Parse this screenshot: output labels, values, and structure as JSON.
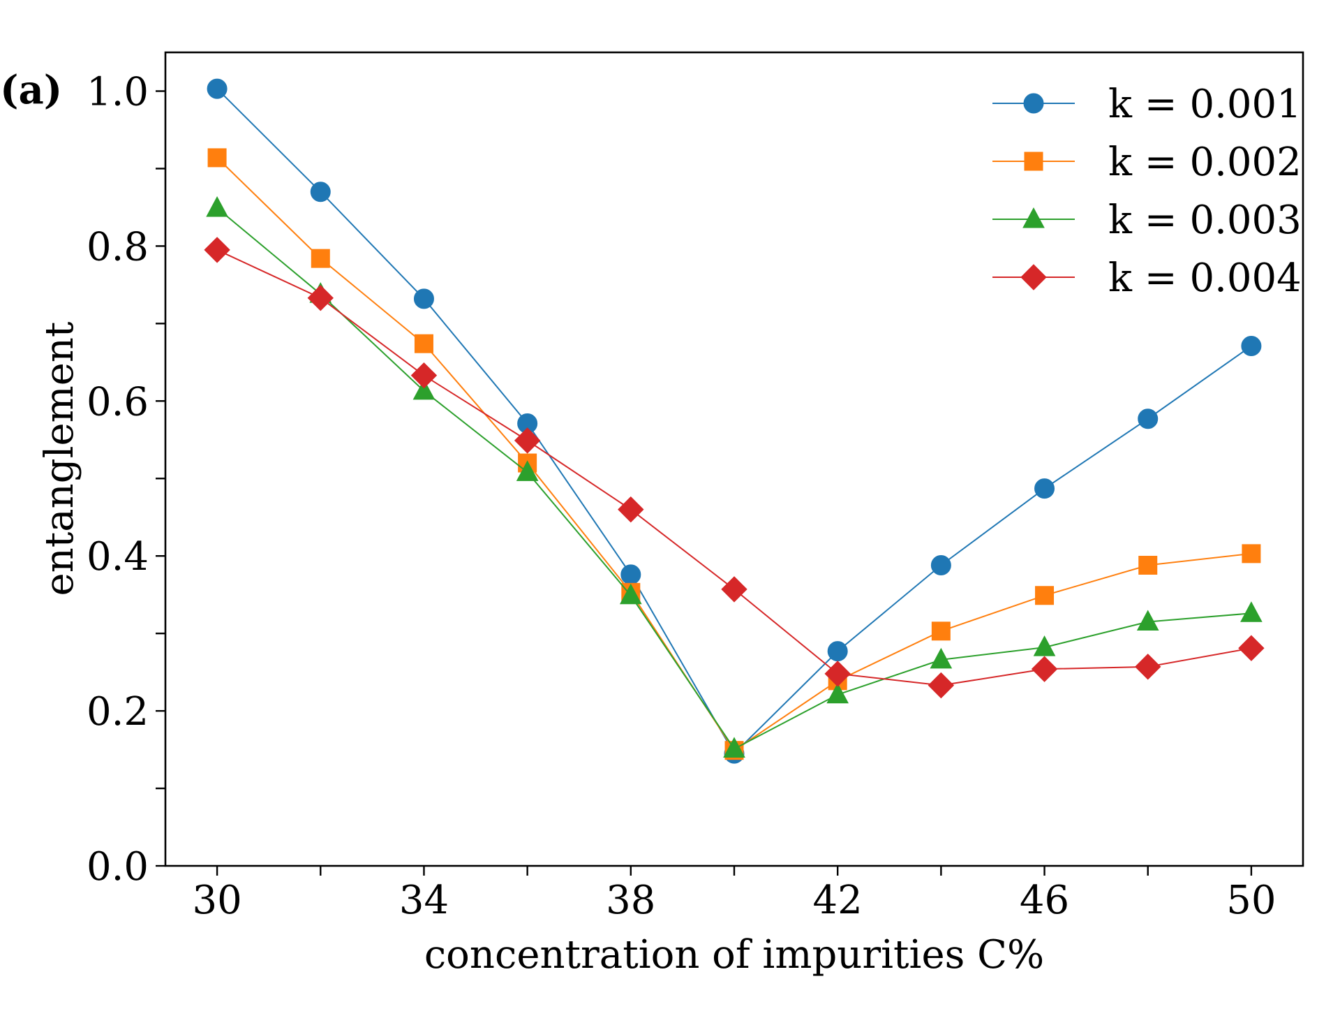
{
  "panel_label": "(a)",
  "chart_data": {
    "type": "line",
    "title": "",
    "xlabel": "concentration of impurities C%",
    "ylabel": "entanglement",
    "xlim": [
      29.0,
      51.0
    ],
    "ylim": [
      0.0,
      1.05
    ],
    "x": [
      30,
      32,
      34,
      36,
      38,
      40,
      42,
      44,
      46,
      48,
      50
    ],
    "xticks": [
      30,
      32,
      34,
      36,
      38,
      40,
      42,
      44,
      46,
      48,
      50
    ],
    "xtick_labels": [
      "30",
      "",
      "34",
      "",
      "38",
      "",
      "42",
      "",
      "46",
      "",
      "50"
    ],
    "yticks": [
      0.0,
      0.1,
      0.2,
      0.3,
      0.4,
      0.5,
      0.6,
      0.7,
      0.8,
      0.9,
      1.0
    ],
    "ytick_labels": [
      "0.0",
      "",
      "0.2",
      "",
      "0.4",
      "",
      "0.6",
      "",
      "0.8",
      "",
      "1.0"
    ],
    "grid": false,
    "legend_position": "top-right",
    "series": [
      {
        "name": "k = 0.001",
        "color": "#1f77b4",
        "marker": "circle",
        "values": [
          1.003,
          0.87,
          0.732,
          0.571,
          0.376,
          0.145,
          0.277,
          0.388,
          0.487,
          0.577,
          0.671
        ]
      },
      {
        "name": "k = 0.002",
        "color": "#ff7f0e",
        "marker": "square",
        "values": [
          0.914,
          0.784,
          0.674,
          0.52,
          0.353,
          0.149,
          0.239,
          0.303,
          0.349,
          0.388,
          0.403
        ]
      },
      {
        "name": "k = 0.003",
        "color": "#2ca02c",
        "marker": "triangle",
        "values": [
          0.849,
          0.738,
          0.613,
          0.508,
          0.349,
          0.151,
          0.221,
          0.266,
          0.282,
          0.315,
          0.326
        ]
      },
      {
        "name": "k = 0.004",
        "color": "#d62728",
        "marker": "diamond",
        "values": [
          0.795,
          0.733,
          0.633,
          0.549,
          0.46,
          0.357,
          0.248,
          0.233,
          0.254,
          0.257,
          0.281
        ]
      }
    ]
  }
}
